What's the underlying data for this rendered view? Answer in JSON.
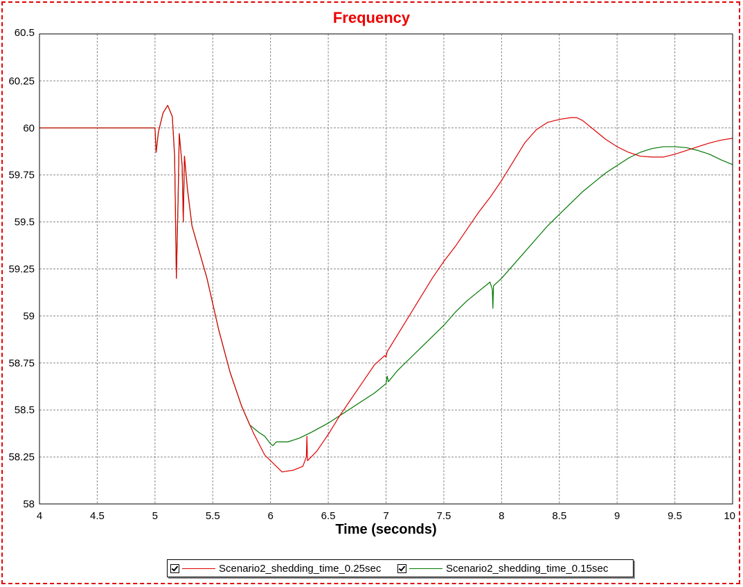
{
  "chart_data": {
    "type": "line",
    "title": "Frequency",
    "xlabel": "Time (seconds)",
    "ylabel": "",
    "xlim": [
      4,
      10
    ],
    "ylim": [
      58,
      60.5
    ],
    "x_ticks": [
      "4",
      "4.5",
      "5",
      "5.5",
      "6",
      "6.5",
      "7",
      "7.5",
      "8",
      "8.5",
      "9",
      "9.5",
      "10"
    ],
    "y_ticks": [
      "58",
      "58.25",
      "58.5",
      "58.75",
      "59",
      "59.25",
      "59.5",
      "59.75",
      "60",
      "60.25",
      "60.5"
    ],
    "grid": true,
    "legend_position": "bottom",
    "series": [
      {
        "name": "Scenario2_shedding_time_0.25sec",
        "color": "#dd0000",
        "points": [
          [
            4,
            60
          ],
          [
            5,
            60
          ],
          [
            5.01,
            59.87
          ],
          [
            5.03,
            59.98
          ],
          [
            5.07,
            60.08
          ],
          [
            5.11,
            60.12
          ],
          [
            5.15,
            60.06
          ],
          [
            5.17,
            59.85
          ],
          [
            5.185,
            59.2
          ],
          [
            5.2,
            59.62
          ],
          [
            5.21,
            59.97
          ],
          [
            5.235,
            59.8
          ],
          [
            5.245,
            59.5
          ],
          [
            5.255,
            59.85
          ],
          [
            5.28,
            59.68
          ],
          [
            5.32,
            59.48
          ],
          [
            5.38,
            59.35
          ],
          [
            5.45,
            59.2
          ],
          [
            5.55,
            58.93
          ],
          [
            5.65,
            58.7
          ],
          [
            5.75,
            58.52
          ],
          [
            5.85,
            58.38
          ],
          [
            5.95,
            58.26
          ],
          [
            6.05,
            58.2
          ],
          [
            6.1,
            58.17
          ],
          [
            6.2,
            58.18
          ],
          [
            6.28,
            58.2
          ],
          [
            6.31,
            58.25
          ],
          [
            6.315,
            58.36
          ],
          [
            6.32,
            58.23
          ],
          [
            6.4,
            58.28
          ],
          [
            6.5,
            58.37
          ],
          [
            6.6,
            58.47
          ],
          [
            6.7,
            58.56
          ],
          [
            6.8,
            58.65
          ],
          [
            6.9,
            58.74
          ],
          [
            6.99,
            58.79
          ],
          [
            7.0,
            58.78
          ],
          [
            7.01,
            58.81
          ],
          [
            7.1,
            58.9
          ],
          [
            7.2,
            59.0
          ],
          [
            7.3,
            59.1
          ],
          [
            7.4,
            59.2
          ],
          [
            7.5,
            59.29
          ],
          [
            7.6,
            59.37
          ],
          [
            7.7,
            59.46
          ],
          [
            7.8,
            59.55
          ],
          [
            7.9,
            59.63
          ],
          [
            8.0,
            59.72
          ],
          [
            8.1,
            59.82
          ],
          [
            8.2,
            59.92
          ],
          [
            8.3,
            59.99
          ],
          [
            8.4,
            60.03
          ],
          [
            8.5,
            60.045
          ],
          [
            8.6,
            60.055
          ],
          [
            8.65,
            60.055
          ],
          [
            8.7,
            60.04
          ],
          [
            8.8,
            59.99
          ],
          [
            8.9,
            59.94
          ],
          [
            9.0,
            59.9
          ],
          [
            9.1,
            59.87
          ],
          [
            9.2,
            59.85
          ],
          [
            9.3,
            59.845
          ],
          [
            9.4,
            59.845
          ],
          [
            9.5,
            59.86
          ],
          [
            9.6,
            59.88
          ],
          [
            9.7,
            59.9
          ],
          [
            9.8,
            59.92
          ],
          [
            9.9,
            59.935
          ],
          [
            10,
            59.945
          ]
        ]
      },
      {
        "name": "Scenario2_shedding_time_0.15sec",
        "color": "#007700",
        "points": [
          [
            4,
            60
          ],
          [
            5,
            60
          ],
          [
            5.01,
            59.87
          ],
          [
            5.03,
            59.98
          ],
          [
            5.07,
            60.08
          ],
          [
            5.11,
            60.12
          ],
          [
            5.15,
            60.06
          ],
          [
            5.17,
            59.85
          ],
          [
            5.185,
            59.2
          ],
          [
            5.2,
            59.62
          ],
          [
            5.21,
            59.97
          ],
          [
            5.235,
            59.8
          ],
          [
            5.245,
            59.5
          ],
          [
            5.255,
            59.85
          ],
          [
            5.28,
            59.68
          ],
          [
            5.32,
            59.48
          ],
          [
            5.38,
            59.35
          ],
          [
            5.45,
            59.2
          ],
          [
            5.55,
            58.93
          ],
          [
            5.65,
            58.7
          ],
          [
            5.75,
            58.52
          ],
          [
            5.82,
            58.42
          ],
          [
            5.86,
            58.4
          ],
          [
            5.9,
            58.38
          ],
          [
            5.95,
            58.36
          ],
          [
            6.0,
            58.32
          ],
          [
            6.02,
            58.31
          ],
          [
            6.05,
            58.33
          ],
          [
            6.15,
            58.33
          ],
          [
            6.25,
            58.35
          ],
          [
            6.35,
            58.38
          ],
          [
            6.5,
            58.43
          ],
          [
            6.6,
            58.47
          ],
          [
            6.7,
            58.51
          ],
          [
            6.8,
            58.55
          ],
          [
            6.9,
            58.59
          ],
          [
            7.0,
            58.64
          ],
          [
            7.01,
            58.68
          ],
          [
            7.02,
            58.65
          ],
          [
            7.1,
            58.71
          ],
          [
            7.2,
            58.77
          ],
          [
            7.3,
            58.83
          ],
          [
            7.4,
            58.89
          ],
          [
            7.5,
            58.95
          ],
          [
            7.6,
            59.02
          ],
          [
            7.7,
            59.08
          ],
          [
            7.8,
            59.13
          ],
          [
            7.9,
            59.18
          ],
          [
            7.92,
            59.14
          ],
          [
            7.925,
            59.04
          ],
          [
            7.93,
            59.16
          ],
          [
            8.0,
            59.2
          ],
          [
            8.1,
            59.27
          ],
          [
            8.2,
            59.34
          ],
          [
            8.3,
            59.41
          ],
          [
            8.4,
            59.48
          ],
          [
            8.5,
            59.54
          ],
          [
            8.6,
            59.6
          ],
          [
            8.7,
            59.66
          ],
          [
            8.8,
            59.71
          ],
          [
            8.9,
            59.76
          ],
          [
            9.0,
            59.8
          ],
          [
            9.1,
            59.84
          ],
          [
            9.2,
            59.87
          ],
          [
            9.3,
            59.89
          ],
          [
            9.4,
            59.9
          ],
          [
            9.5,
            59.9
          ],
          [
            9.6,
            59.895
          ],
          [
            9.7,
            59.88
          ],
          [
            9.8,
            59.86
          ],
          [
            9.9,
            59.83
          ],
          [
            10,
            59.805
          ]
        ]
      }
    ]
  }
}
